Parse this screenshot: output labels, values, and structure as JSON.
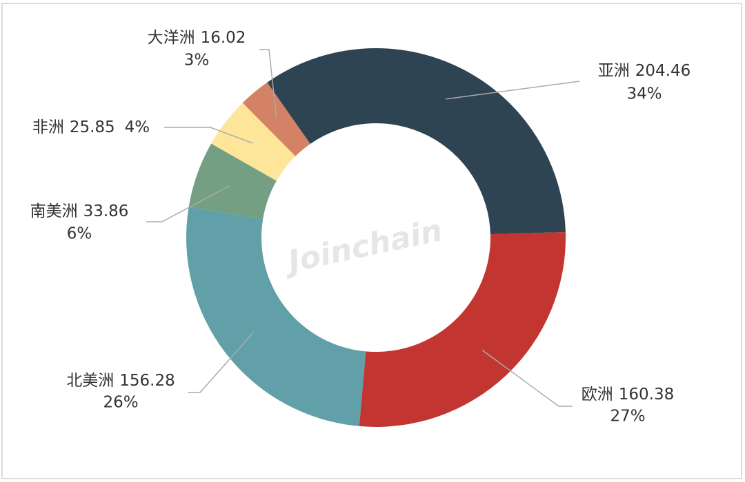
{
  "chart_data": {
    "type": "pie",
    "categories": [
      "亚洲",
      "欧洲",
      "北美洲",
      "南美洲",
      "非洲",
      "大洋洲"
    ],
    "values": [
      204.46,
      160.38,
      156.28,
      33.86,
      25.85,
      16.02
    ],
    "percentage_labels": [
      "34%",
      "27%",
      "26%",
      "6%",
      "4%",
      "3%"
    ],
    "colors": [
      "#2e4453",
      "#c23531",
      "#61a0a8",
      "#749f83",
      "#fde69a",
      "#d48265"
    ],
    "watermark": "Joinchain"
  }
}
